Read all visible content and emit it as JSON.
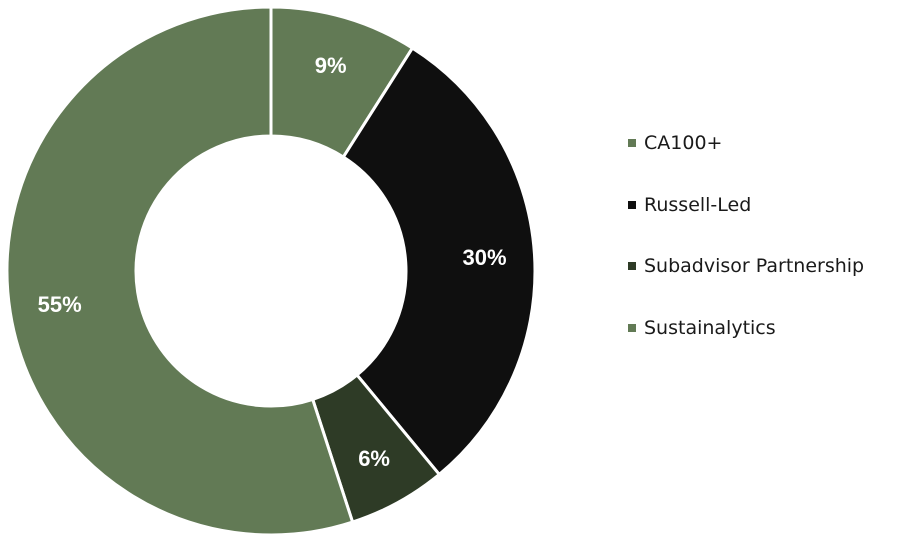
{
  "chart_data": {
    "type": "pie",
    "donut": true,
    "title": "",
    "categories": [
      "CA100+",
      "Russell-Led",
      "Subadvisor Partnership",
      "Sustainalytics"
    ],
    "values": [
      9,
      30,
      6,
      55
    ],
    "value_labels": [
      "9%",
      "30%",
      "6%",
      "55%"
    ],
    "colors": [
      "#627a55",
      "#0f0f0f",
      "#2e3b26",
      "#627a55"
    ],
    "legend": {
      "placement": "right",
      "entries": [
        {
          "label": "CA100+",
          "color": "#627a55"
        },
        {
          "label": "Russell-Led",
          "color": "#0f0f0f"
        },
        {
          "label": "Subadvisor Partnership",
          "color": "#2e3b26"
        },
        {
          "label": "Sustainalytics",
          "color": "#627a55"
        }
      ]
    }
  }
}
